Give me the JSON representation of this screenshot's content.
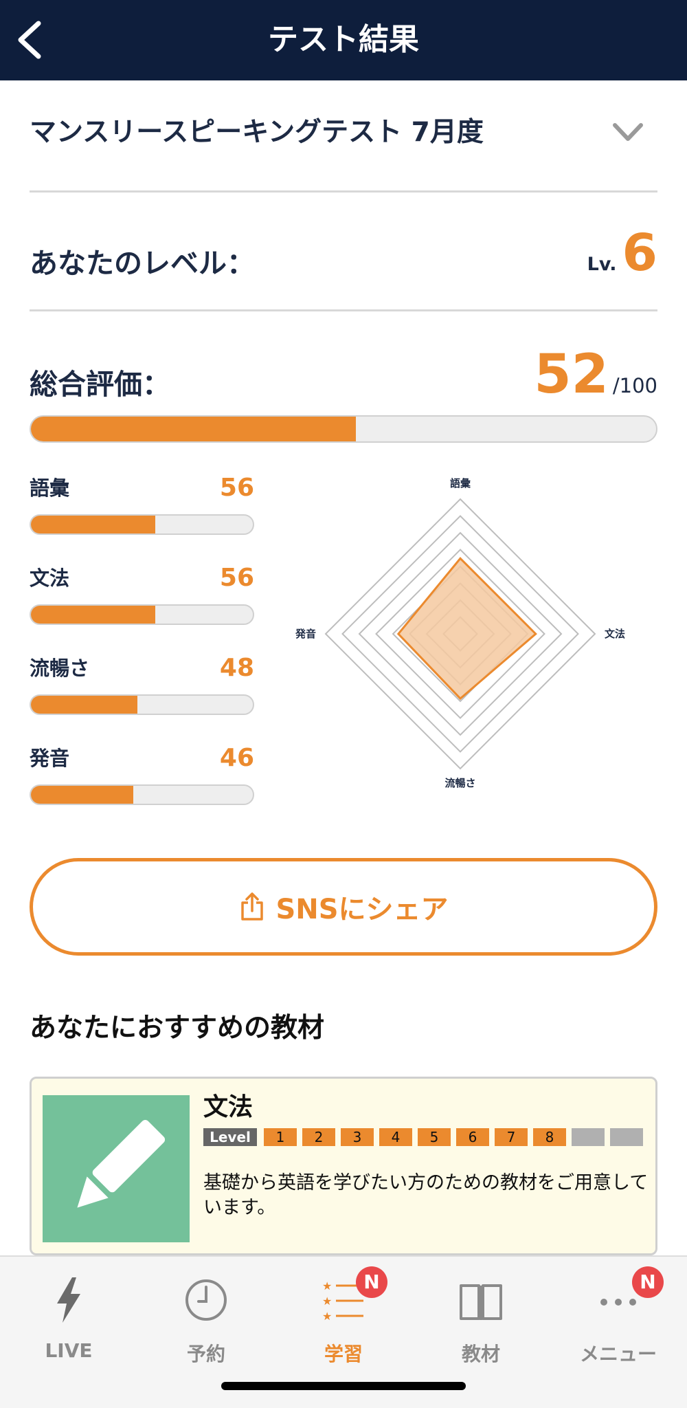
{
  "header": {
    "title": "テスト結果",
    "back_icon": "chevron-left-icon"
  },
  "test_select": {
    "name": "マンスリースピーキングテスト 7月度",
    "dropdown_icon": "chevron-down-icon"
  },
  "level": {
    "label": "あなたのレベル：",
    "prefix": "Lv.",
    "value": "6"
  },
  "overall": {
    "label": "総合評価：",
    "score": "52",
    "max": "/100",
    "fraction": 0.52
  },
  "skills": [
    {
      "name": "語彙",
      "value": "56",
      "fraction": 0.56
    },
    {
      "name": "文法",
      "value": "56",
      "fraction": 0.56
    },
    {
      "name": "流暢さ",
      "value": "48",
      "fraction": 0.48
    },
    {
      "name": "発音",
      "value": "46",
      "fraction": 0.46
    }
  ],
  "chart_data": {
    "type": "radar",
    "axes": [
      "語彙",
      "文法",
      "流暢さ",
      "発音"
    ],
    "values": [
      56,
      56,
      48,
      46
    ],
    "range": [
      0,
      100
    ],
    "rings": 8,
    "fill_color": "#f5c9a0",
    "stroke_color": "#eb8a2e"
  },
  "share": {
    "label": "SNSにシェア",
    "icon": "share-icon"
  },
  "recommend": {
    "title": "あなたにおすすめの教材",
    "card": {
      "title": "文法",
      "level_tag": "Level",
      "levels": [
        "1",
        "2",
        "3",
        "4",
        "5",
        "6",
        "7",
        "8",
        "",
        ""
      ],
      "active_levels": 8,
      "description": "基礎から英語を学びたい方のための教材をご用意しています。",
      "icon": "pencil-icon"
    }
  },
  "tabs": [
    {
      "label": "LIVE",
      "icon": "lightning-icon",
      "active": false,
      "badge": ""
    },
    {
      "label": "予約",
      "icon": "clock-icon",
      "active": false,
      "badge": ""
    },
    {
      "label": "学習",
      "icon": "star-list-icon",
      "active": true,
      "badge": "N"
    },
    {
      "label": "教材",
      "icon": "book-icon",
      "active": false,
      "badge": ""
    },
    {
      "label": "メニュー",
      "icon": "more-icon",
      "active": false,
      "badge": "N"
    }
  ],
  "colors": {
    "accent": "#eb8a2e",
    "header_bg": "#0e1e3c",
    "badge": "#e9484a"
  }
}
